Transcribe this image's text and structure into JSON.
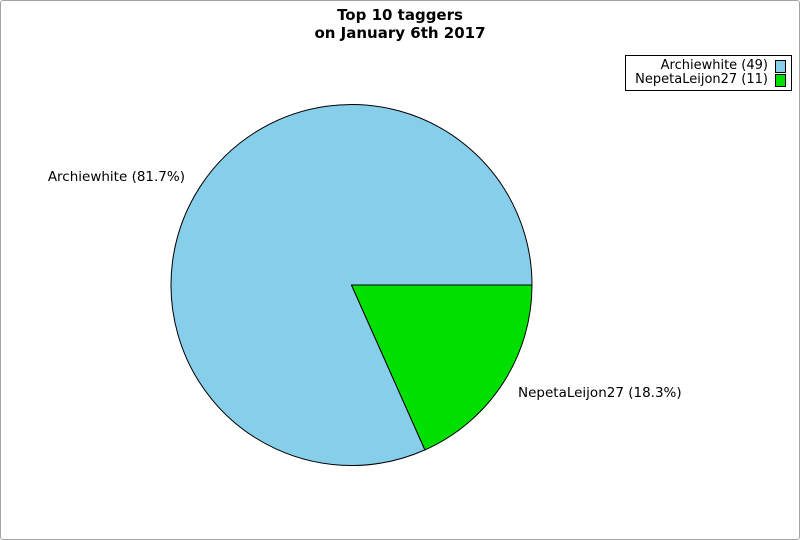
{
  "figure": {
    "title_line1": "Top 10 taggers",
    "title_line2": "on January 6th 2017"
  },
  "colors": {
    "background": "#ffffff",
    "figure_border": "#a3a3a3",
    "slice_stroke": "#000000",
    "text": "#000000"
  },
  "legend": {
    "position": "upper right",
    "entries": [
      {
        "label": "Archiewhite (49)",
        "color": "#87ceeb"
      },
      {
        "label": "NepetaLeijon27 (11)",
        "color": "#00e000"
      }
    ]
  },
  "chart_data": {
    "type": "pie",
    "title": "Top 10 taggers on January 6th 2017",
    "total": 60,
    "start_angle_deg": 0,
    "direction": "counterclockwise",
    "label_distance": 1.1,
    "stroke": "#000000",
    "slices": [
      {
        "name": "Archiewhite",
        "value": 49,
        "percent": 81.7,
        "label": "Archiewhite (81.7%)",
        "color": "#87ceeb"
      },
      {
        "name": "NepetaLeijon27",
        "value": 11,
        "percent": 18.3,
        "label": "NepetaLeijon27 (18.3%)",
        "color": "#00e000"
      }
    ]
  }
}
